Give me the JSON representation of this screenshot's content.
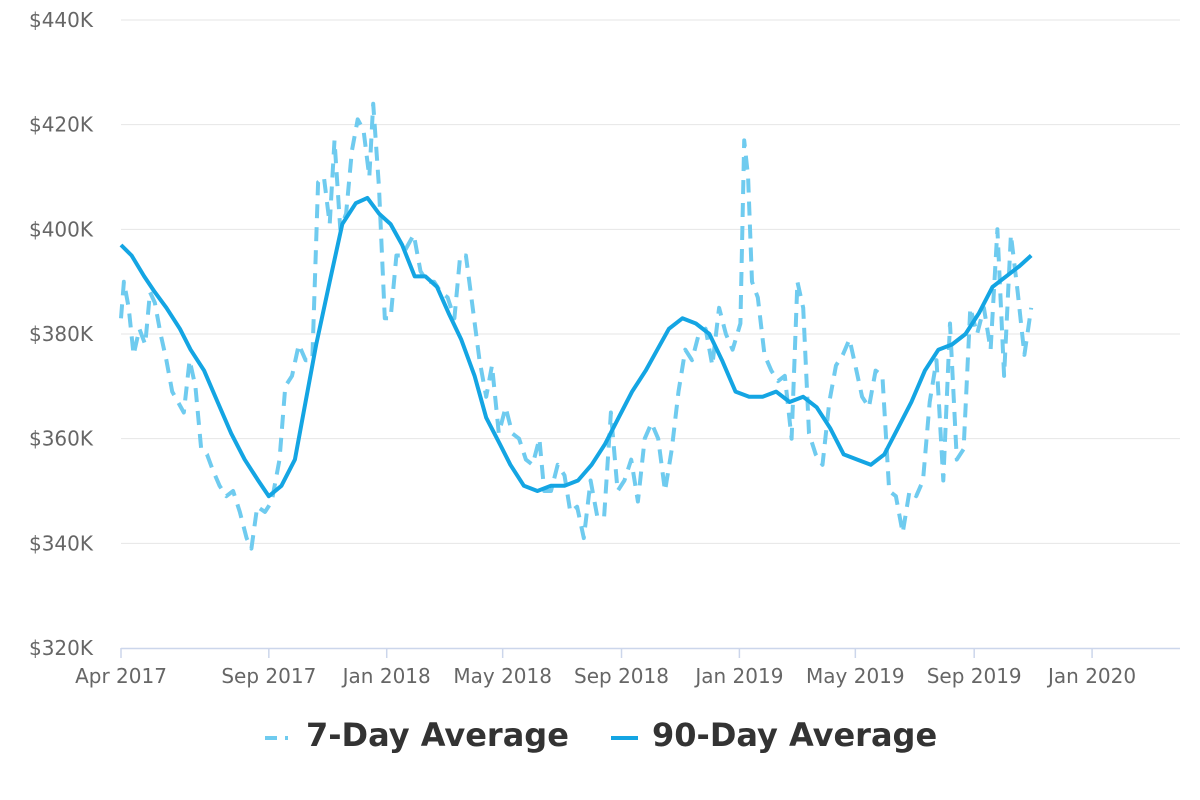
{
  "chart_data": {
    "type": "line",
    "title": "",
    "xlabel": "",
    "ylabel": "",
    "ylim": [
      320000,
      440000
    ],
    "y_ticks": [
      {
        "value": 320000,
        "label": "$320K"
      },
      {
        "value": 340000,
        "label": "$340K"
      },
      {
        "value": 360000,
        "label": "$360K"
      },
      {
        "value": 380000,
        "label": "$380K"
      },
      {
        "value": 400000,
        "label": "$400K"
      },
      {
        "value": 420000,
        "label": "$420K"
      },
      {
        "value": 440000,
        "label": "$440K"
      }
    ],
    "x_domain": [
      "2017-04-01",
      "2020-04-01"
    ],
    "x_ticks": [
      {
        "date": "2017-04-01",
        "label": "Apr 2017"
      },
      {
        "date": "2017-09-01",
        "label": "Sep 2017"
      },
      {
        "date": "2018-01-01",
        "label": "Jan 2018"
      },
      {
        "date": "2018-05-01",
        "label": "May 2018"
      },
      {
        "date": "2018-09-01",
        "label": "Sep 2018"
      },
      {
        "date": "2019-01-01",
        "label": "Jan 2019"
      },
      {
        "date": "2019-05-01",
        "label": "May 2019"
      },
      {
        "date": "2019-09-01",
        "label": "Sep 2019"
      },
      {
        "date": "2020-01-01",
        "label": "Jan 2020"
      }
    ],
    "grid": true,
    "legend_position": "bottom-center",
    "colors": {
      "seven_day": "#6FCBEF",
      "ninety_day": "#14A5E3",
      "grid": "#E6E6E6",
      "axis": "#CCD6EB"
    },
    "series": [
      {
        "name": "7-Day Average",
        "style": "dashed",
        "points": [
          [
            "2017-04-01",
            383000
          ],
          [
            "2017-04-04",
            390000
          ],
          [
            "2017-04-09",
            385000
          ],
          [
            "2017-04-14",
            376000
          ],
          [
            "2017-04-20",
            381000
          ],
          [
            "2017-04-26",
            378000
          ],
          [
            "2017-05-01",
            388000
          ],
          [
            "2017-05-06",
            386000
          ],
          [
            "2017-05-12",
            380000
          ],
          [
            "2017-05-18",
            375000
          ],
          [
            "2017-05-24",
            369000
          ],
          [
            "2017-05-30",
            367000
          ],
          [
            "2017-06-05",
            365000
          ],
          [
            "2017-06-11",
            375000
          ],
          [
            "2017-06-17",
            370000
          ],
          [
            "2017-06-23",
            358000
          ],
          [
            "2017-06-29",
            357000
          ],
          [
            "2017-07-05",
            354000
          ],
          [
            "2017-07-12",
            351000
          ],
          [
            "2017-07-19",
            349000
          ],
          [
            "2017-07-26",
            350000
          ],
          [
            "2017-08-02",
            346000
          ],
          [
            "2017-08-09",
            341000
          ],
          [
            "2017-08-14",
            339000
          ],
          [
            "2017-08-20",
            347000
          ],
          [
            "2017-08-28",
            346000
          ],
          [
            "2017-09-04",
            348000
          ],
          [
            "2017-09-12",
            356000
          ],
          [
            "2017-09-18",
            370000
          ],
          [
            "2017-09-25",
            372000
          ],
          [
            "2017-10-02",
            378000
          ],
          [
            "2017-10-09",
            375000
          ],
          [
            "2017-10-16",
            375000
          ],
          [
            "2017-10-22",
            409000
          ],
          [
            "2017-10-28",
            410000
          ],
          [
            "2017-11-03",
            401000
          ],
          [
            "2017-11-08",
            417000
          ],
          [
            "2017-11-14",
            400000
          ],
          [
            "2017-11-20",
            403000
          ],
          [
            "2017-11-26",
            415000
          ],
          [
            "2017-12-02",
            421000
          ],
          [
            "2017-12-08",
            419000
          ],
          [
            "2017-12-14",
            410000
          ],
          [
            "2017-12-18",
            424000
          ],
          [
            "2017-12-24",
            408000
          ],
          [
            "2017-12-30",
            383000
          ],
          [
            "2018-01-05",
            383000
          ],
          [
            "2018-01-11",
            395000
          ],
          [
            "2018-01-17",
            395000
          ],
          [
            "2018-01-23",
            397000
          ],
          [
            "2018-01-29",
            399000
          ],
          [
            "2018-02-05",
            392000
          ],
          [
            "2018-02-12",
            390000
          ],
          [
            "2018-02-19",
            390000
          ],
          [
            "2018-02-26",
            388000
          ],
          [
            "2018-03-05",
            387000
          ],
          [
            "2018-03-12",
            383000
          ],
          [
            "2018-03-18",
            395000
          ],
          [
            "2018-03-24",
            395000
          ],
          [
            "2018-03-31",
            385000
          ],
          [
            "2018-04-07",
            375000
          ],
          [
            "2018-04-14",
            368000
          ],
          [
            "2018-04-20",
            374000
          ],
          [
            "2018-04-27",
            361000
          ],
          [
            "2018-05-04",
            366000
          ],
          [
            "2018-05-11",
            361000
          ],
          [
            "2018-05-18",
            360000
          ],
          [
            "2018-05-25",
            356000
          ],
          [
            "2018-06-01",
            355000
          ],
          [
            "2018-06-08",
            360000
          ],
          [
            "2018-06-13",
            350000
          ],
          [
            "2018-06-20",
            350000
          ],
          [
            "2018-06-27",
            355000
          ],
          [
            "2018-07-04",
            353000
          ],
          [
            "2018-07-10",
            346000
          ],
          [
            "2018-07-17",
            347000
          ],
          [
            "2018-07-24",
            341000
          ],
          [
            "2018-07-31",
            352000
          ],
          [
            "2018-08-07",
            345000
          ],
          [
            "2018-08-14",
            345000
          ],
          [
            "2018-08-21",
            365000
          ],
          [
            "2018-08-28",
            350000
          ],
          [
            "2018-09-04",
            352000
          ],
          [
            "2018-09-11",
            356000
          ],
          [
            "2018-09-18",
            348000
          ],
          [
            "2018-09-25",
            360000
          ],
          [
            "2018-10-02",
            363000
          ],
          [
            "2018-10-09",
            360000
          ],
          [
            "2018-10-16",
            350000
          ],
          [
            "2018-10-23",
            358000
          ],
          [
            "2018-10-30",
            369000
          ],
          [
            "2018-11-06",
            377000
          ],
          [
            "2018-11-13",
            375000
          ],
          [
            "2018-11-20",
            380000
          ],
          [
            "2018-11-27",
            381000
          ],
          [
            "2018-12-04",
            374000
          ],
          [
            "2018-12-11",
            385000
          ],
          [
            "2018-12-18",
            380000
          ],
          [
            "2018-12-25",
            377000
          ],
          [
            "2019-01-02",
            382000
          ],
          [
            "2019-01-06",
            417000
          ],
          [
            "2019-01-10",
            410000
          ],
          [
            "2019-01-14",
            390000
          ],
          [
            "2019-01-20",
            387000
          ],
          [
            "2019-01-27",
            376000
          ],
          [
            "2019-02-03",
            373000
          ],
          [
            "2019-02-10",
            371000
          ],
          [
            "2019-02-17",
            372000
          ],
          [
            "2019-02-24",
            360000
          ],
          [
            "2019-03-02",
            390000
          ],
          [
            "2019-03-08",
            385000
          ],
          [
            "2019-03-14",
            361000
          ],
          [
            "2019-03-21",
            357000
          ],
          [
            "2019-03-28",
            355000
          ],
          [
            "2019-04-04",
            367000
          ],
          [
            "2019-04-11",
            374000
          ],
          [
            "2019-04-18",
            376000
          ],
          [
            "2019-04-25",
            379000
          ],
          [
            "2019-05-01",
            374000
          ],
          [
            "2019-05-08",
            368000
          ],
          [
            "2019-05-15",
            366000
          ],
          [
            "2019-05-22",
            373000
          ],
          [
            "2019-05-29",
            372000
          ],
          [
            "2019-06-05",
            350000
          ],
          [
            "2019-06-12",
            349000
          ],
          [
            "2019-06-19",
            342000
          ],
          [
            "2019-06-26",
            350000
          ],
          [
            "2019-07-03",
            349000
          ],
          [
            "2019-07-10",
            352000
          ],
          [
            "2019-07-17",
            367000
          ],
          [
            "2019-07-24",
            375000
          ],
          [
            "2019-07-31",
            352000
          ],
          [
            "2019-08-07",
            382000
          ],
          [
            "2019-08-14",
            356000
          ],
          [
            "2019-08-21",
            358000
          ],
          [
            "2019-08-28",
            385000
          ],
          [
            "2019-09-04",
            380000
          ],
          [
            "2019-09-11",
            385000
          ],
          [
            "2019-09-18",
            377000
          ],
          [
            "2019-09-25",
            400000
          ],
          [
            "2019-10-02",
            372000
          ],
          [
            "2019-10-09",
            399000
          ],
          [
            "2019-10-16",
            388000
          ],
          [
            "2019-10-23",
            376000
          ],
          [
            "2019-10-30",
            385000
          ]
        ]
      },
      {
        "name": "90-Day Average",
        "style": "solid",
        "points": [
          [
            "2017-04-01",
            397000
          ],
          [
            "2017-04-12",
            395000
          ],
          [
            "2017-04-25",
            391000
          ],
          [
            "2017-05-06",
            388000
          ],
          [
            "2017-05-18",
            385000
          ],
          [
            "2017-06-01",
            381000
          ],
          [
            "2017-06-12",
            377000
          ],
          [
            "2017-06-26",
            373000
          ],
          [
            "2017-07-10",
            367000
          ],
          [
            "2017-07-24",
            361000
          ],
          [
            "2017-08-07",
            356000
          ],
          [
            "2017-08-21",
            352000
          ],
          [
            "2017-09-01",
            349000
          ],
          [
            "2017-09-14",
            351000
          ],
          [
            "2017-09-28",
            356000
          ],
          [
            "2017-10-07",
            365000
          ],
          [
            "2017-10-20",
            378000
          ],
          [
            "2017-11-03",
            390000
          ],
          [
            "2017-11-16",
            401000
          ],
          [
            "2017-11-30",
            405000
          ],
          [
            "2017-12-12",
            406000
          ],
          [
            "2017-12-24",
            403000
          ],
          [
            "2018-01-05",
            401000
          ],
          [
            "2018-01-17",
            397000
          ],
          [
            "2018-01-30",
            391000
          ],
          [
            "2018-02-10",
            391000
          ],
          [
            "2018-02-22",
            389000
          ],
          [
            "2018-03-06",
            384000
          ],
          [
            "2018-03-19",
            379000
          ],
          [
            "2018-04-02",
            372000
          ],
          [
            "2018-04-14",
            364000
          ],
          [
            "2018-04-28",
            359000
          ],
          [
            "2018-05-09",
            355000
          ],
          [
            "2018-05-23",
            351000
          ],
          [
            "2018-06-06",
            350000
          ],
          [
            "2018-06-20",
            351000
          ],
          [
            "2018-07-04",
            351000
          ],
          [
            "2018-07-18",
            352000
          ],
          [
            "2018-08-01",
            355000
          ],
          [
            "2018-08-15",
            359000
          ],
          [
            "2018-08-29",
            364000
          ],
          [
            "2018-09-12",
            369000
          ],
          [
            "2018-09-26",
            373000
          ],
          [
            "2018-10-08",
            377000
          ],
          [
            "2018-10-20",
            381000
          ],
          [
            "2018-11-03",
            383000
          ],
          [
            "2018-11-17",
            382000
          ],
          [
            "2018-12-01",
            380000
          ],
          [
            "2018-12-14",
            375000
          ],
          [
            "2018-12-28",
            369000
          ],
          [
            "2019-01-11",
            368000
          ],
          [
            "2019-01-25",
            368000
          ],
          [
            "2019-02-08",
            369000
          ],
          [
            "2019-02-22",
            367000
          ],
          [
            "2019-03-08",
            368000
          ],
          [
            "2019-03-22",
            366000
          ],
          [
            "2019-04-05",
            362000
          ],
          [
            "2019-04-19",
            357000
          ],
          [
            "2019-05-03",
            356000
          ],
          [
            "2019-05-17",
            355000
          ],
          [
            "2019-05-31",
            357000
          ],
          [
            "2019-06-14",
            362000
          ],
          [
            "2019-06-28",
            367000
          ],
          [
            "2019-07-12",
            373000
          ],
          [
            "2019-07-26",
            377000
          ],
          [
            "2019-08-09",
            378000
          ],
          [
            "2019-08-23",
            380000
          ],
          [
            "2019-09-06",
            384000
          ],
          [
            "2019-09-20",
            389000
          ],
          [
            "2019-10-04",
            391000
          ],
          [
            "2019-10-18",
            393000
          ],
          [
            "2019-10-30",
            395000
          ]
        ]
      }
    ]
  }
}
